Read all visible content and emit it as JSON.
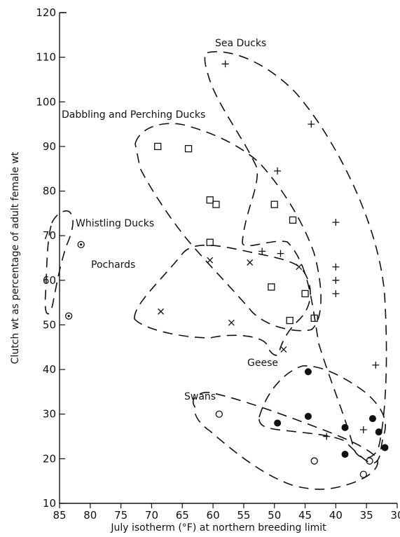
{
  "chart_data": {
    "type": "scatter",
    "title": "",
    "xlabel": "July isotherm (°F) at northern breeding limit",
    "ylabel": "Clutch wt as percentage of adult female wt",
    "xlim": [
      85,
      30
    ],
    "ylim": [
      10,
      120
    ],
    "x_ticks": [
      85,
      80,
      75,
      70,
      65,
      60,
      55,
      50,
      45,
      40,
      35,
      30
    ],
    "y_ticks": [
      10,
      20,
      30,
      40,
      50,
      60,
      70,
      80,
      90,
      100,
      110,
      120
    ],
    "x_reversed": true,
    "grid": false,
    "legend": "none",
    "series": [
      {
        "name": "Sea Ducks",
        "marker": "plus",
        "points": [
          [
            58,
            108.5
          ],
          [
            44,
            95
          ],
          [
            49.5,
            84.5
          ],
          [
            40,
            73
          ],
          [
            52,
            66.5
          ],
          [
            49,
            66
          ],
          [
            40,
            63
          ],
          [
            40,
            60
          ],
          [
            40,
            57
          ],
          [
            33.5,
            41
          ],
          [
            41.5,
            25
          ],
          [
            35.5,
            26.5
          ]
        ]
      },
      {
        "name": "Dabbling and Perching Ducks",
        "marker": "square",
        "points": [
          [
            69,
            90
          ],
          [
            64,
            89.5
          ],
          [
            60.5,
            78
          ],
          [
            59.5,
            77
          ],
          [
            50,
            77
          ],
          [
            47,
            73.5
          ],
          [
            60.5,
            68.5
          ],
          [
            50.5,
            58.5
          ],
          [
            45,
            57
          ],
          [
            47.5,
            51
          ],
          [
            43.5,
            51.5
          ]
        ]
      },
      {
        "name": "Whistling Ducks",
        "marker": "dotted-circle",
        "points": [
          [
            81.5,
            68
          ],
          [
            83.5,
            52
          ]
        ]
      },
      {
        "name": "Pochards",
        "marker": "x",
        "points": [
          [
            60.5,
            64.5
          ],
          [
            54,
            64
          ],
          [
            46,
            63
          ],
          [
            68.5,
            53
          ],
          [
            57,
            50.5
          ],
          [
            48.5,
            44.5
          ]
        ]
      },
      {
        "name": "Geese",
        "marker": "filled-circle",
        "points": [
          [
            44.5,
            39.5
          ],
          [
            49.5,
            28
          ],
          [
            44.5,
            29.5
          ],
          [
            38.5,
            27
          ],
          [
            34,
            29
          ],
          [
            33,
            26
          ],
          [
            32,
            22.5
          ],
          [
            38.5,
            21
          ]
        ]
      },
      {
        "name": "Swans",
        "marker": "open-circle",
        "points": [
          [
            59,
            30
          ],
          [
            43.5,
            19.5
          ],
          [
            35.5,
            16.5
          ],
          [
            34.5,
            19.5
          ]
        ]
      }
    ]
  }
}
